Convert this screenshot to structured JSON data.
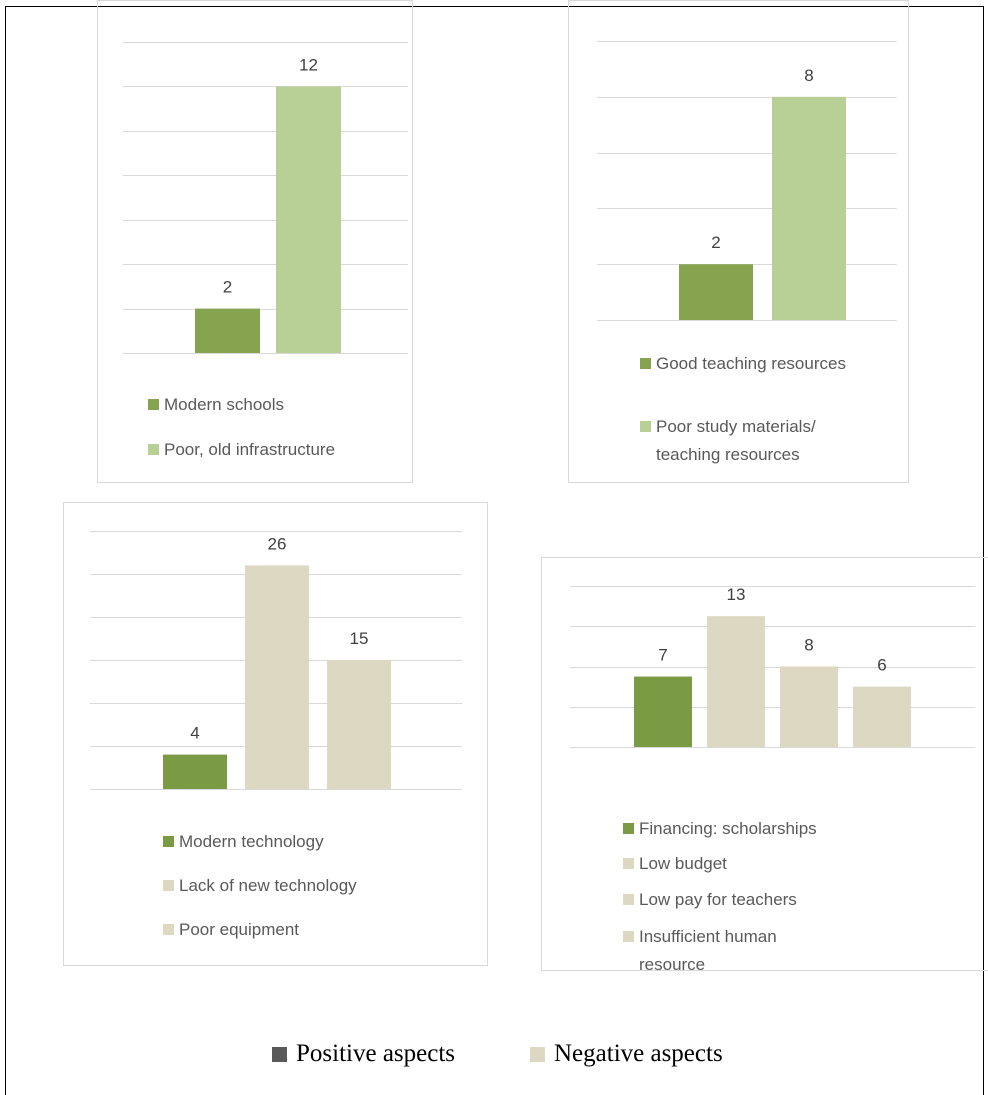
{
  "chart_data": [
    {
      "type": "bar",
      "categories": [
        "Modern schools",
        "Poor, old infrastructure"
      ],
      "values": [
        2,
        12
      ],
      "colors": [
        "#86a34f",
        "#b8cf96"
      ],
      "ylim": [
        0,
        14
      ],
      "yticks": [
        0,
        2,
        4,
        6,
        8,
        10,
        12,
        14
      ],
      "grid": true
    },
    {
      "type": "bar",
      "categories": [
        "Good teaching resources",
        "Poor study materials/ teaching resources"
      ],
      "values": [
        2,
        8
      ],
      "colors": [
        "#86a34f",
        "#b8cf96"
      ],
      "ylim": [
        0,
        10
      ],
      "yticks": [
        0,
        2,
        4,
        6,
        8,
        10
      ],
      "grid": true
    },
    {
      "type": "bar",
      "categories": [
        "Modern technology",
        "Lack of new technology",
        "Poor equipment"
      ],
      "values": [
        4,
        26,
        15
      ],
      "colors": [
        "#7a9a44",
        "#ddd8c1",
        "#ddd8c1"
      ],
      "ylim": [
        0,
        30
      ],
      "yticks": [
        0,
        5,
        10,
        15,
        20,
        25,
        30
      ],
      "grid": true
    },
    {
      "type": "bar",
      "categories": [
        "Financing: scholarships",
        "Low budget",
        "Low pay for teachers",
        "Insufficient human resource"
      ],
      "values": [
        7,
        13,
        8,
        6
      ],
      "colors": [
        "#7a9a44",
        "#ddd8c1",
        "#ddd8c1",
        "#ddd8c1"
      ],
      "ylim": [
        0,
        16
      ],
      "yticks": [
        0,
        4,
        8,
        12,
        16
      ],
      "grid": true
    }
  ],
  "legend": {
    "items": [
      {
        "label": "Positive aspects",
        "color": "#595959"
      },
      {
        "label": "Negative aspects",
        "color": "#ddd8c4"
      }
    ]
  }
}
